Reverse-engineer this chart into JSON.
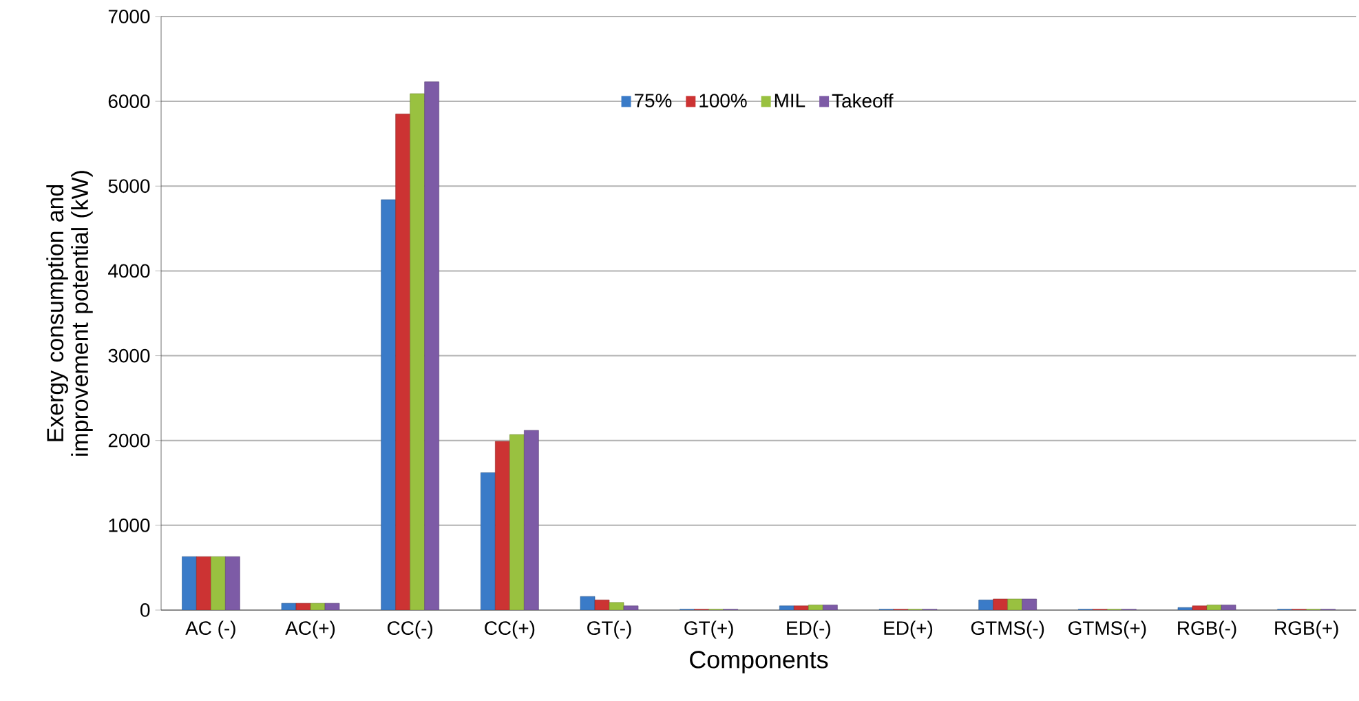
{
  "chart_data": {
    "type": "bar",
    "xlabel": "Components",
    "ylabel": "Exergy consumption and improvement potential  (kW)",
    "categories": [
      "AC (-)",
      "AC(+)",
      "CC(-)",
      "CC(+)",
      "GT(-)",
      "GT(+)",
      "ED(-)",
      "ED(+)",
      "GTMS(-)",
      "GTMS(+)",
      "RGB(-)",
      "RGB(+)"
    ],
    "series": [
      {
        "name": "75%",
        "color": "#3a7bc8",
        "values": [
          630,
          80,
          4840,
          1620,
          160,
          10,
          50,
          10,
          120,
          10,
          30,
          10
        ]
      },
      {
        "name": "100%",
        "color": "#cc3333",
        "values": [
          630,
          80,
          5850,
          1990,
          120,
          10,
          50,
          10,
          130,
          10,
          50,
          10
        ]
      },
      {
        "name": "MIL",
        "color": "#99c140",
        "values": [
          630,
          80,
          6090,
          2070,
          90,
          10,
          60,
          10,
          130,
          10,
          60,
          10
        ]
      },
      {
        "name": "Takeoff",
        "color": "#7d5ba6",
        "values": [
          630,
          80,
          6230,
          2120,
          50,
          10,
          60,
          10,
          130,
          10,
          60,
          10
        ]
      }
    ],
    "ylim": [
      0,
      7000
    ],
    "yticks": [
      0,
      1000,
      2000,
      3000,
      4000,
      5000,
      6000,
      7000
    ],
    "grid": "y",
    "legend": "top"
  }
}
